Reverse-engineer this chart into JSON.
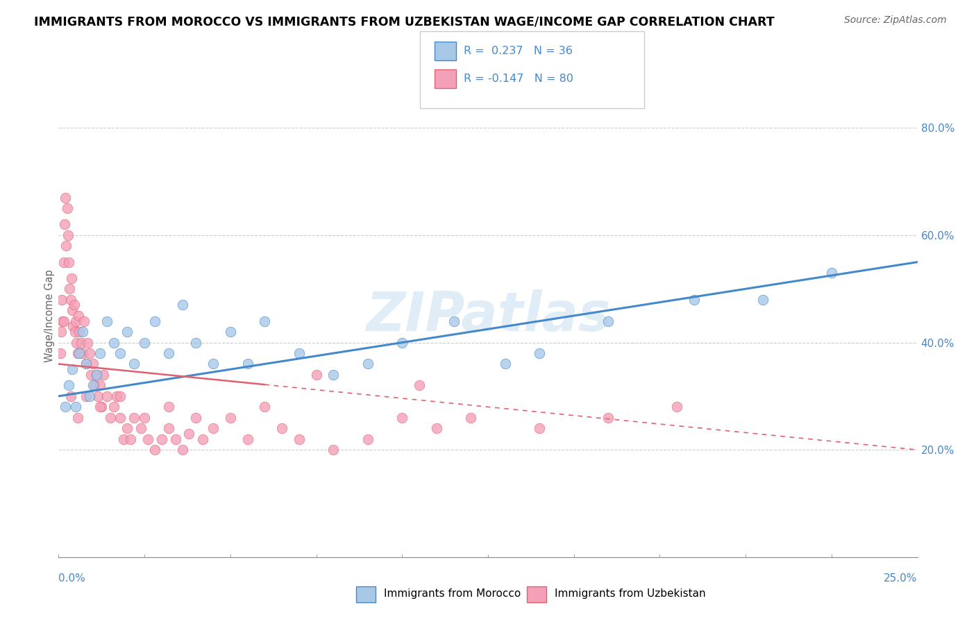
{
  "title": "IMMIGRANTS FROM MOROCCO VS IMMIGRANTS FROM UZBEKISTAN WAGE/INCOME GAP CORRELATION CHART",
  "source_text": "Source: ZipAtlas.com",
  "ylabel": "Wage/Income Gap",
  "xlim": [
    0.0,
    25.0
  ],
  "ylim": [
    0.0,
    90.0
  ],
  "yticks_right": [
    20.0,
    40.0,
    60.0,
    80.0
  ],
  "morocco_color": "#a8c8e8",
  "uzbekistan_color": "#f4a0b8",
  "morocco_line_color": "#4488cc",
  "uzbekistan_line_color": "#e06070",
  "watermark": "ZIPatlas",
  "morocco_R": 0.237,
  "morocco_N": 36,
  "uzbekistan_R": -0.147,
  "uzbekistan_N": 80,
  "legend_footer_morocco": "Immigrants from Morocco",
  "legend_footer_uzbekistan": "Immigrants from Uzbekistan",
  "morocco_scatter_x": [
    0.2,
    0.3,
    0.4,
    0.5,
    0.6,
    0.7,
    0.8,
    0.9,
    1.0,
    1.1,
    1.2,
    1.4,
    1.6,
    1.8,
    2.0,
    2.2,
    2.5,
    2.8,
    3.2,
    3.6,
    4.0,
    4.5,
    5.0,
    5.5,
    6.0,
    7.0,
    8.0,
    9.0,
    10.0,
    11.5,
    13.0,
    14.0,
    16.0,
    18.5,
    20.5,
    22.5
  ],
  "morocco_scatter_y": [
    28,
    32,
    35,
    28,
    38,
    42,
    36,
    30,
    32,
    34,
    38,
    44,
    40,
    38,
    42,
    36,
    40,
    44,
    38,
    47,
    40,
    36,
    42,
    36,
    44,
    38,
    34,
    36,
    40,
    44,
    36,
    38,
    44,
    48,
    48,
    53
  ],
  "uzbekistan_scatter_x": [
    0.05,
    0.08,
    0.1,
    0.12,
    0.15,
    0.18,
    0.2,
    0.22,
    0.25,
    0.28,
    0.3,
    0.32,
    0.35,
    0.38,
    0.4,
    0.42,
    0.45,
    0.48,
    0.5,
    0.52,
    0.55,
    0.58,
    0.6,
    0.65,
    0.7,
    0.75,
    0.8,
    0.85,
    0.9,
    0.95,
    1.0,
    1.05,
    1.1,
    1.15,
    1.2,
    1.25,
    1.3,
    1.4,
    1.5,
    1.6,
    1.7,
    1.8,
    1.9,
    2.0,
    2.1,
    2.2,
    2.4,
    2.6,
    2.8,
    3.0,
    3.2,
    3.4,
    3.6,
    3.8,
    4.0,
    4.2,
    4.5,
    5.0,
    5.5,
    6.0,
    6.5,
    7.0,
    8.0,
    9.0,
    10.0,
    11.0,
    12.0,
    14.0,
    16.0,
    18.0,
    10.5,
    7.5,
    3.2,
    2.5,
    1.8,
    1.2,
    0.8,
    0.55,
    0.35,
    0.15
  ],
  "uzbekistan_scatter_y": [
    38,
    42,
    48,
    44,
    55,
    62,
    67,
    58,
    65,
    60,
    55,
    50,
    48,
    52,
    46,
    43,
    47,
    42,
    44,
    40,
    38,
    45,
    42,
    40,
    38,
    44,
    36,
    40,
    38,
    34,
    36,
    32,
    34,
    30,
    32,
    28,
    34,
    30,
    26,
    28,
    30,
    26,
    22,
    24,
    22,
    26,
    24,
    22,
    20,
    22,
    24,
    22,
    20,
    23,
    26,
    22,
    24,
    26,
    22,
    28,
    24,
    22,
    20,
    22,
    26,
    24,
    26,
    24,
    26,
    28,
    32,
    34,
    28,
    26,
    30,
    28,
    30,
    26,
    30,
    44
  ]
}
